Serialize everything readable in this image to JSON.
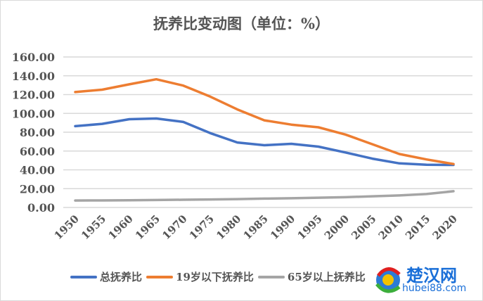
{
  "chart_data": {
    "type": "line",
    "title": "抚养比变动图（单位：%）",
    "x": [
      "1950",
      "1955",
      "1960",
      "1965",
      "1970",
      "1975",
      "1980",
      "1985",
      "1990",
      "1995",
      "2000",
      "2005",
      "2010",
      "2015",
      "2020"
    ],
    "ylim": [
      0,
      160
    ],
    "yticks": [
      "0.00",
      "20.00",
      "40.00",
      "60.00",
      "80.00",
      "100.00",
      "120.00",
      "140.00",
      "160.00"
    ],
    "grid": true,
    "legend_position": "bottom",
    "series": [
      {
        "name": "总抚养比",
        "color": "#4472c4",
        "values": [
          86.4,
          88.9,
          93.8,
          94.6,
          90.9,
          79.0,
          69.1,
          66.2,
          67.7,
          64.7,
          58.5,
          51.9,
          46.9,
          45.4,
          45.2
        ]
      },
      {
        "name": "19岁以下抚养比",
        "color": "#ed7d31",
        "values": [
          122.7,
          125.2,
          130.9,
          136.3,
          129.6,
          117.8,
          104.2,
          92.6,
          88.1,
          85.2,
          77.5,
          67.2,
          56.8,
          51.1,
          46.2
        ]
      },
      {
        "name": "65岁以上抚养比",
        "color": "#a5a5a5",
        "values": [
          7.4,
          7.5,
          7.7,
          7.9,
          8.2,
          8.5,
          8.9,
          9.4,
          9.8,
          10.4,
          10.9,
          11.9,
          12.8,
          14.3,
          17.3
        ]
      }
    ]
  },
  "watermark": {
    "name": "楚汉网",
    "url": "hubei88.com"
  }
}
